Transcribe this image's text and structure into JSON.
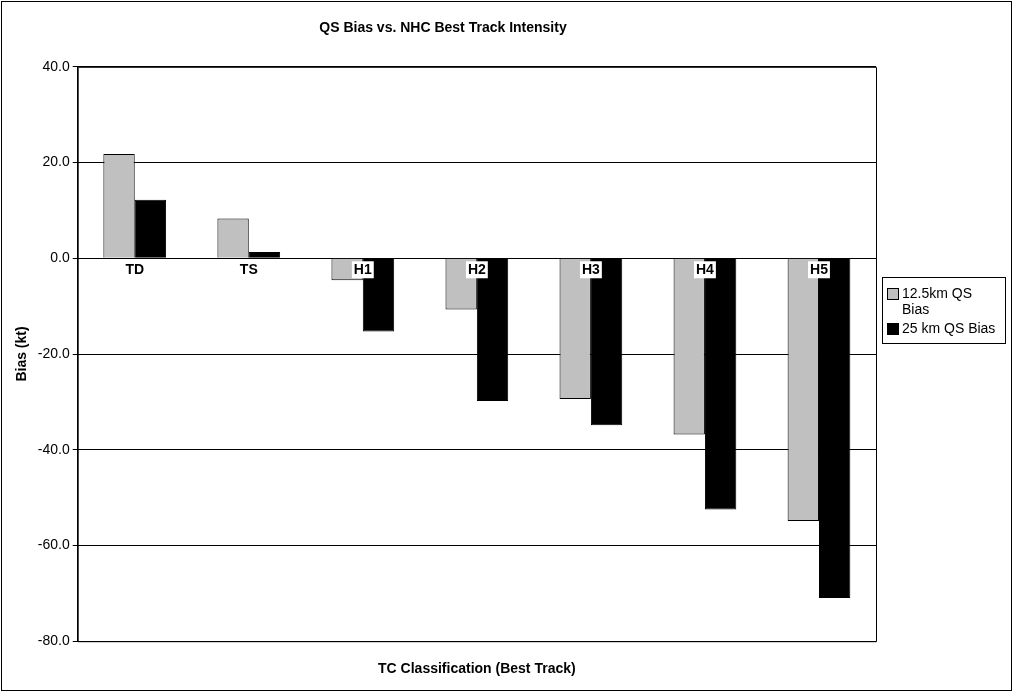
{
  "chart_data": {
    "type": "bar",
    "title": "QS Bias vs. NHC Best Track Intensity",
    "xlabel": "TC Classification (Best Track)",
    "ylabel": "Bias (kt)",
    "categories": [
      "TD",
      "TS",
      "H1",
      "H2",
      "H3",
      "H4",
      "H5"
    ],
    "series": [
      {
        "name": "12.5km QS Bias",
        "color": "#c0c0c0",
        "values": [
          21.8,
          8.3,
          -4.6,
          -10.7,
          -29.4,
          -36.8,
          -54.9
        ]
      },
      {
        "name": "25 km QS Bias",
        "color": "#000000",
        "values": [
          12.2,
          1.3,
          -15.3,
          -29.8,
          -34.9,
          -52.5,
          -71.0
        ]
      }
    ],
    "ylim": [
      -80,
      40
    ],
    "yticks": [
      {
        "value": -80,
        "label": "-80.0"
      },
      {
        "value": -60,
        "label": "-60.0"
      },
      {
        "value": -40,
        "label": "-40.0"
      },
      {
        "value": -20,
        "label": "-20.0"
      },
      {
        "value": 0,
        "label": "0.0"
      },
      {
        "value": 20,
        "label": "20.0"
      },
      {
        "value": 40,
        "label": "40.0"
      }
    ],
    "grid": "y",
    "legend": "right"
  }
}
